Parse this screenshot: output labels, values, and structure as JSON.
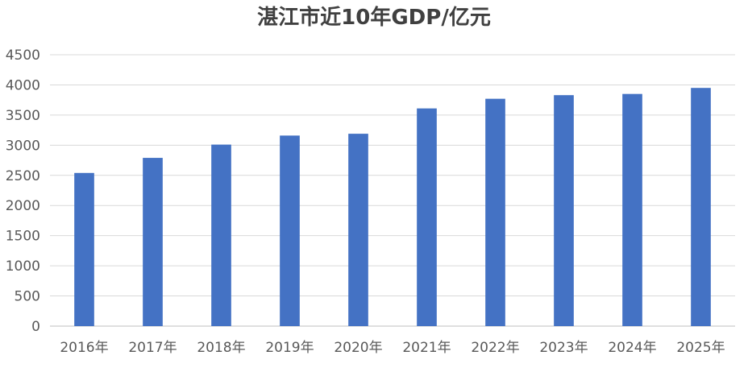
{
  "chart_data": {
    "type": "bar",
    "title": "湛江市近10年GDP/亿元",
    "categories": [
      "2016年",
      "2017年",
      "2018年",
      "2019年",
      "2020年",
      "2021年",
      "2022年",
      "2023年",
      "2024年",
      "2025年"
    ],
    "series": [
      {
        "values": [
          2540,
          2790,
          3010,
          3160,
          3190,
          3610,
          3770,
          3830,
          3850,
          3950
        ],
        "color": "#4472C4"
      }
    ],
    "xlabel": "",
    "ylabel": "",
    "ylim": [
      0,
      4500
    ],
    "yticks": [
      0,
      500,
      1000,
      1500,
      2000,
      2500,
      3000,
      3500,
      4000,
      4500
    ],
    "grid": true,
    "legend": "none"
  }
}
